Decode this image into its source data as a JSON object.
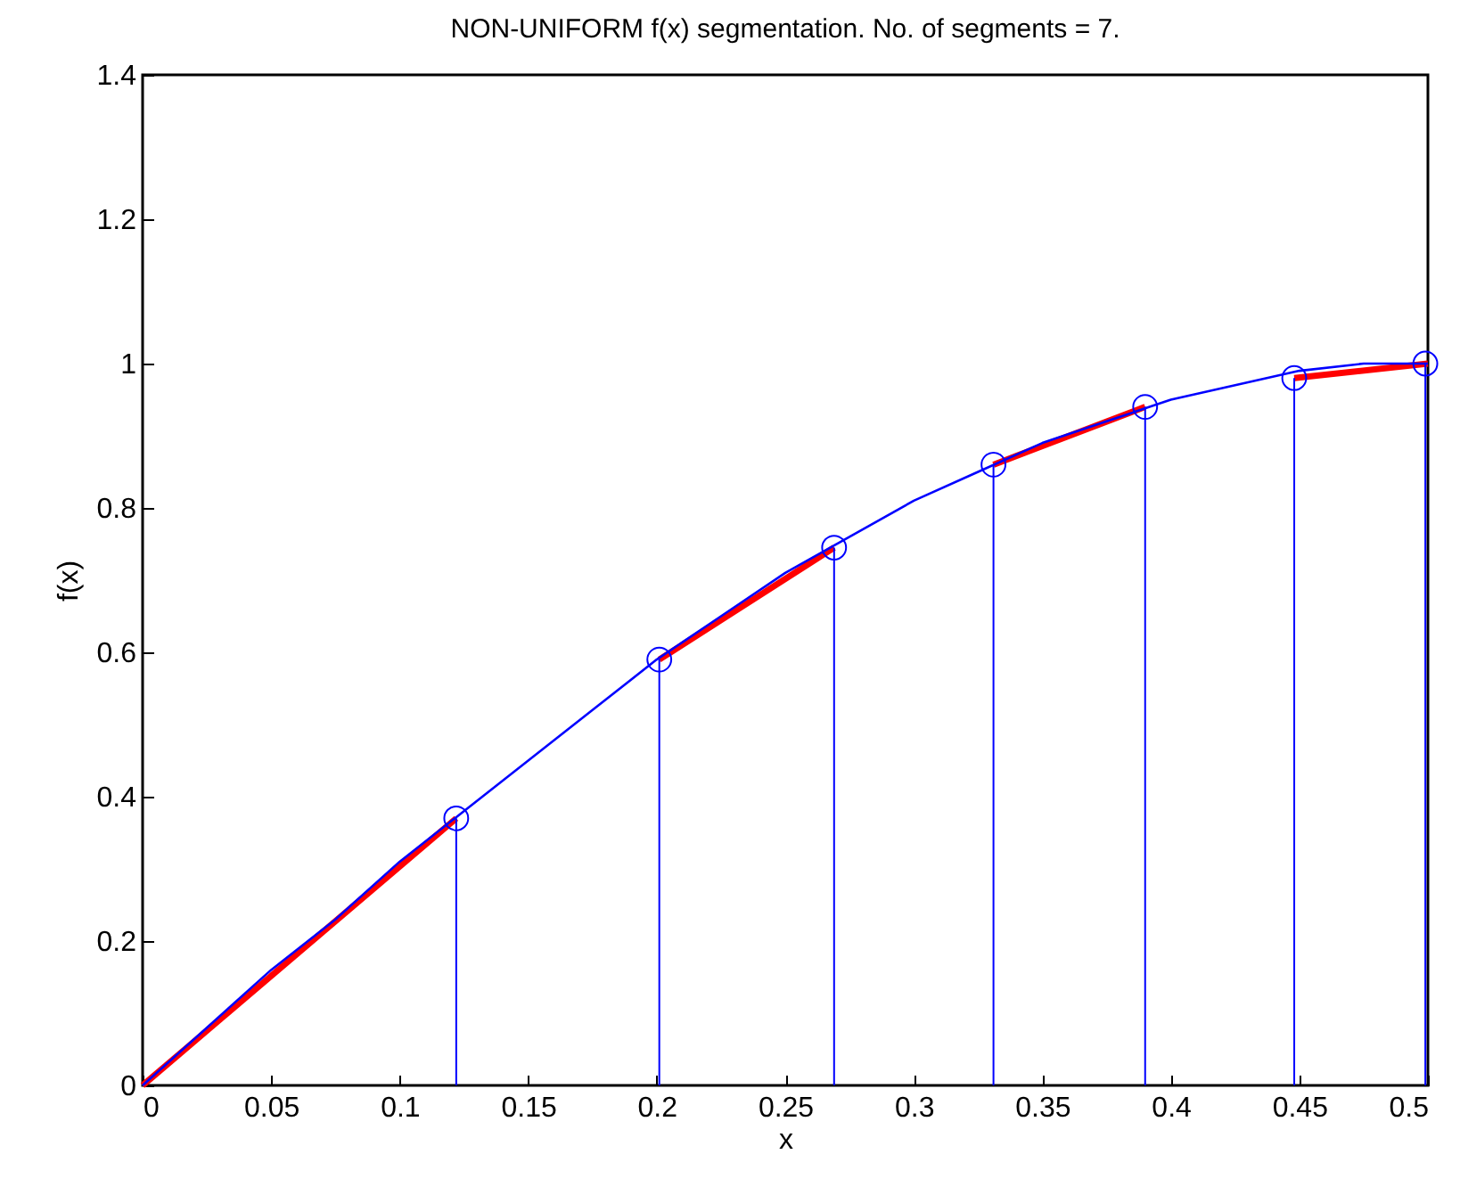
{
  "chart_data": {
    "type": "line",
    "title": "NON-UNIFORM f(x) segmentation. No. of segments = 7.",
    "xlabel": "x",
    "ylabel": "f(x)",
    "xlim": [
      0,
      0.5
    ],
    "xticks": [
      0,
      0.05,
      0.1,
      0.15,
      0.2,
      0.25,
      0.3,
      0.35,
      0.4,
      0.45,
      0.5
    ],
    "ylim": [
      0,
      1.4
    ],
    "yticks": [
      0,
      0.2,
      0.4,
      0.6,
      0.8,
      1,
      1.2,
      1.4
    ],
    "series": [
      {
        "color": "#ff0000",
        "x": [
          0,
          0.122
        ],
        "values": [
          0,
          0.37
        ]
      },
      {
        "color": "#ff0000",
        "x": [
          0.201,
          0.269
        ],
        "values": [
          0.59,
          0.745
        ]
      },
      {
        "color": "#ff0000",
        "x": [
          0.331,
          0.39
        ],
        "values": [
          0.86,
          0.94
        ]
      },
      {
        "color": "#ff0000",
        "x": [
          0.448,
          0.5
        ],
        "values": [
          0.98,
          1.0
        ]
      },
      {
        "color": "#0000ff",
        "x": [
          0,
          0.025,
          0.05,
          0.075,
          0.1,
          0.125,
          0.15,
          0.175,
          0.2,
          0.225,
          0.25,
          0.275,
          0.3,
          0.325,
          0.35,
          0.375,
          0.4,
          0.425,
          0.45,
          0.475,
          0.5
        ],
        "values": [
          0,
          0.08,
          0.16,
          0.23,
          0.31,
          0.38,
          0.45,
          0.52,
          0.59,
          0.65,
          0.71,
          0.76,
          0.81,
          0.85,
          0.89,
          0.92,
          0.95,
          0.97,
          0.99,
          1.0,
          1.0
        ]
      },
      {
        "type": "lollipop",
        "color": "#0000ff",
        "marker": "circle",
        "x": [
          0.122,
          0.201,
          0.269,
          0.331,
          0.39,
          0.448,
          0.499
        ],
        "values": [
          0.37,
          0.59,
          0.745,
          0.86,
          0.94,
          0.98,
          1.0
        ]
      }
    ]
  }
}
